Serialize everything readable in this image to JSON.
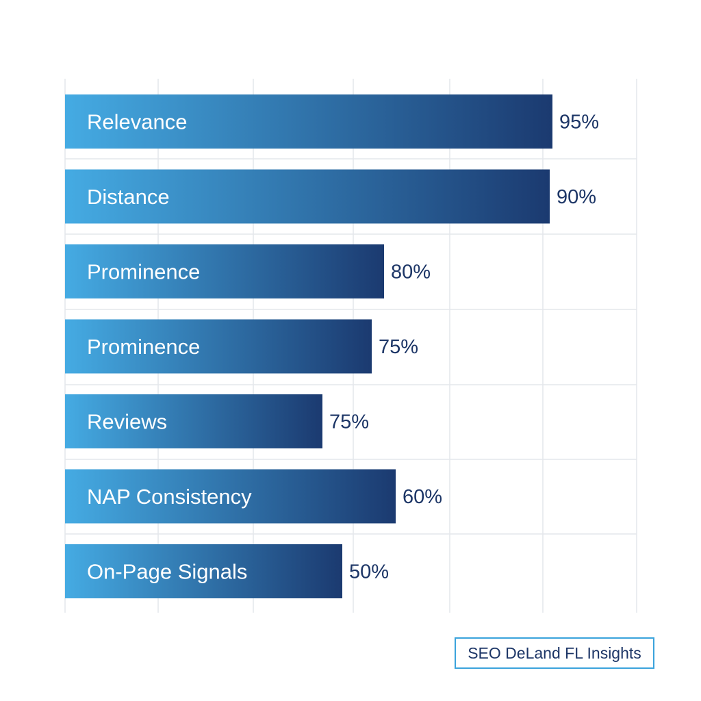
{
  "chart_data": {
    "type": "bar",
    "orientation": "horizontal",
    "categories": [
      "Relevance",
      "Distance",
      "Prominence",
      "Prominence",
      "Reviews",
      "NAP Consistency",
      "On-Page Signals"
    ],
    "values": [
      95,
      90,
      80,
      75,
      75,
      60,
      50
    ],
    "value_labels": [
      "95%",
      "90%",
      "80%",
      "75%",
      "75%",
      "60%",
      "50%"
    ],
    "title": "",
    "xlabel": "",
    "ylabel": "",
    "grid": true,
    "legend": "none",
    "colors": {
      "bar_start": "#45abe3",
      "bar_end": "#1b3a70",
      "value_text": "#1c3566",
      "grid": "#e4e7eb"
    }
  },
  "badge": {
    "text": "SEO DeLand FL Insights",
    "border_color": "#3aa3dc"
  }
}
